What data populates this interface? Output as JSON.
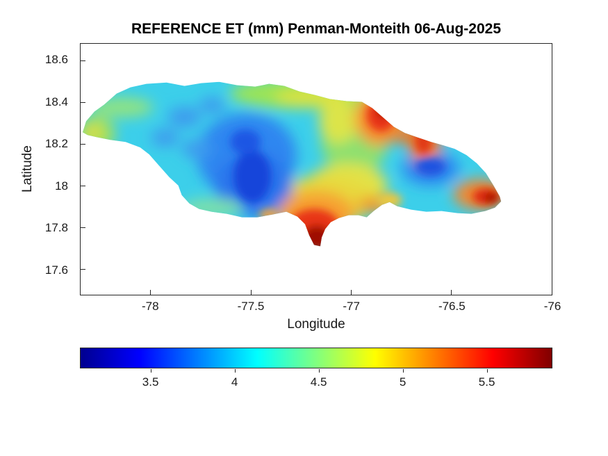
{
  "figure": {
    "title": "REFERENCE ET (mm) Penman-Monteith 06-Aug-2025",
    "xlabel": "Longitude",
    "ylabel": "Latitude"
  },
  "chart_data": {
    "type": "heatmap",
    "title": "REFERENCE ET (mm) Penman-Monteith 06-Aug-2025",
    "xlabel": "Longitude",
    "ylabel": "Latitude",
    "units": "mm",
    "region": "Jamaica",
    "grid": false,
    "xlim": [
      -78.35,
      -76.0
    ],
    "ylim": [
      17.48,
      18.68
    ],
    "x_ticks": [
      -78,
      -77.5,
      -77,
      -76.5,
      -76
    ],
    "y_ticks": [
      18.6,
      18.4,
      18.2,
      18,
      17.8,
      17.6
    ],
    "colorbar": {
      "orientation": "horizontal",
      "position": "bottom",
      "colormap": "jet",
      "min": 3.08,
      "max": 5.89,
      "ticks": [
        3.5,
        4,
        4.5,
        5,
        5.5
      ],
      "stops": [
        {
          "color": "#00008F",
          "pos": 0
        },
        {
          "color": "#0000FF",
          "pos": 0.125
        },
        {
          "color": "#00FFFF",
          "pos": 0.375
        },
        {
          "color": "#FFFF00",
          "pos": 0.625
        },
        {
          "color": "#FF0000",
          "pos": 0.875
        },
        {
          "color": "#800000",
          "pos": 1
        }
      ]
    },
    "sample_points": [
      {
        "lon": -77.55,
        "lat": 18.05,
        "value": 3.3,
        "note": "lowest ET, dark-blue core in central-west interior"
      },
      {
        "lon": -77.6,
        "lat": 18.2,
        "value": 3.7,
        "note": "mottled blue zone, west-central interior"
      },
      {
        "lon": -78.2,
        "lat": 18.3,
        "value": 4.2,
        "note": "cyan background, western parishes"
      },
      {
        "lon": -78.3,
        "lat": 18.27,
        "value": 4.7,
        "note": "green-yellow patch at western tip"
      },
      {
        "lon": -77.4,
        "lat": 18.45,
        "value": 4.6,
        "note": "yellow-green strip along north coast"
      },
      {
        "lon": -76.85,
        "lat": 18.33,
        "value": 5.6,
        "note": "red high along northeast coast"
      },
      {
        "lon": -76.72,
        "lat": 18.08,
        "value": 3.6,
        "note": "dark-blue low over eastern interior (Blue Mountains)"
      },
      {
        "lon": -76.3,
        "lat": 17.95,
        "value": 5.8,
        "note": "dark-red maximum near eastern tip"
      },
      {
        "lon": -77.15,
        "lat": 17.75,
        "value": 5.8,
        "note": "dark-red maximum on south-central peninsula"
      },
      {
        "lon": -77.0,
        "lat": 18.0,
        "value": 5.0,
        "note": "yellow-orange band, south-central area"
      }
    ]
  }
}
